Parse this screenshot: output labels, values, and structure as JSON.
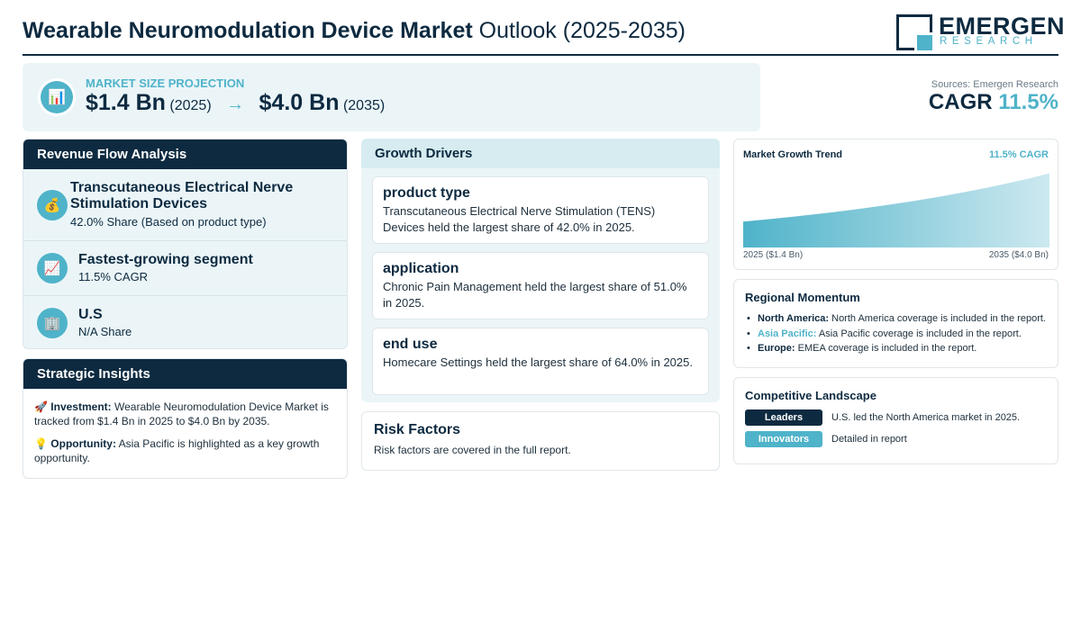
{
  "header": {
    "title_bold": "Wearable Neuromodulation Device Market",
    "title_rest": "Outlook (2025-2035)",
    "logo_name": "EMERGEN",
    "logo_sub": "RESEARCH"
  },
  "projection": {
    "label": "MARKET SIZE PROJECTION",
    "start_value": "$1.4 Bn",
    "start_year": "(2025)",
    "arrow": "→",
    "end_value": "$4.0 Bn",
    "end_year": "(2035)",
    "icon": "bar-chart-icon"
  },
  "sources": {
    "text": "Sources: Emergen Research",
    "cagr_label": "CAGR",
    "cagr_value": "11.5%"
  },
  "revenue_flow": {
    "title": "Revenue Flow Analysis",
    "items": [
      {
        "icon": "money-bag-icon",
        "title": "Transcutaneous Electrical Nerve Stimulation Devices",
        "sub": "42.0% Share (Based on product type)"
      },
      {
        "icon": "trend-up-icon",
        "title": "Fastest-growing segment",
        "sub": "11.5% CAGR"
      },
      {
        "icon": "building-icon",
        "title": "U.S",
        "sub": "N/A Share"
      }
    ]
  },
  "strategic": {
    "title": "Strategic Insights",
    "investment_label": "Investment:",
    "investment_text": "Wearable Neuromodulation Device Market is tracked from $1.4 Bn in 2025 to $4.0 Bn by 2035.",
    "opportunity_label": "Opportunity:",
    "opportunity_text": "Asia Pacific is highlighted as a key growth opportunity."
  },
  "growth_drivers": {
    "title": "Growth Drivers",
    "items": [
      {
        "title": "product type",
        "text": "Transcutaneous Electrical Nerve Stimulation (TENS) Devices held the largest share of 42.0% in 2025."
      },
      {
        "title": "application",
        "text": "Chronic Pain Management held the largest share of 51.0% in 2025."
      },
      {
        "title": "end use",
        "text": "Homecare Settings held the largest share of 64.0% in 2025."
      }
    ]
  },
  "risk": {
    "title": "Risk Factors",
    "text": "Risk factors are covered in the full report."
  },
  "trend": {
    "title": "Market Growth Trend",
    "cagr": "11.5% CAGR",
    "start_label": "2025 ($1.4 Bn)",
    "end_label": "2035 ($4.0 Bn)"
  },
  "chart_data": {
    "type": "area",
    "x": [
      2025,
      2035
    ],
    "values": [
      1.4,
      4.0
    ],
    "title": "Market Growth Trend",
    "annotation": "11.5% CAGR",
    "tick_labels": [
      "2025 ($1.4 Bn)",
      "2035 ($4.0 Bn)"
    ]
  },
  "regional": {
    "title": "Regional Momentum",
    "items": [
      {
        "label": "North America:",
        "text": "North America coverage is included in the report."
      },
      {
        "label": "Asia Pacific:",
        "text": "Asia Pacific coverage is included in the report."
      },
      {
        "label": "Europe:",
        "text": "EMEA coverage is included in the report."
      }
    ]
  },
  "competitive": {
    "title": "Competitive Landscape",
    "rows": [
      {
        "pill": "Leaders",
        "text": "U.S. led the North America market in 2025."
      },
      {
        "pill": "Innovators",
        "text": "Detailed in report"
      }
    ]
  },
  "colors": {
    "navy": "#0d2a40",
    "teal": "#4fb3c9",
    "panel": "#ebf5f8"
  }
}
